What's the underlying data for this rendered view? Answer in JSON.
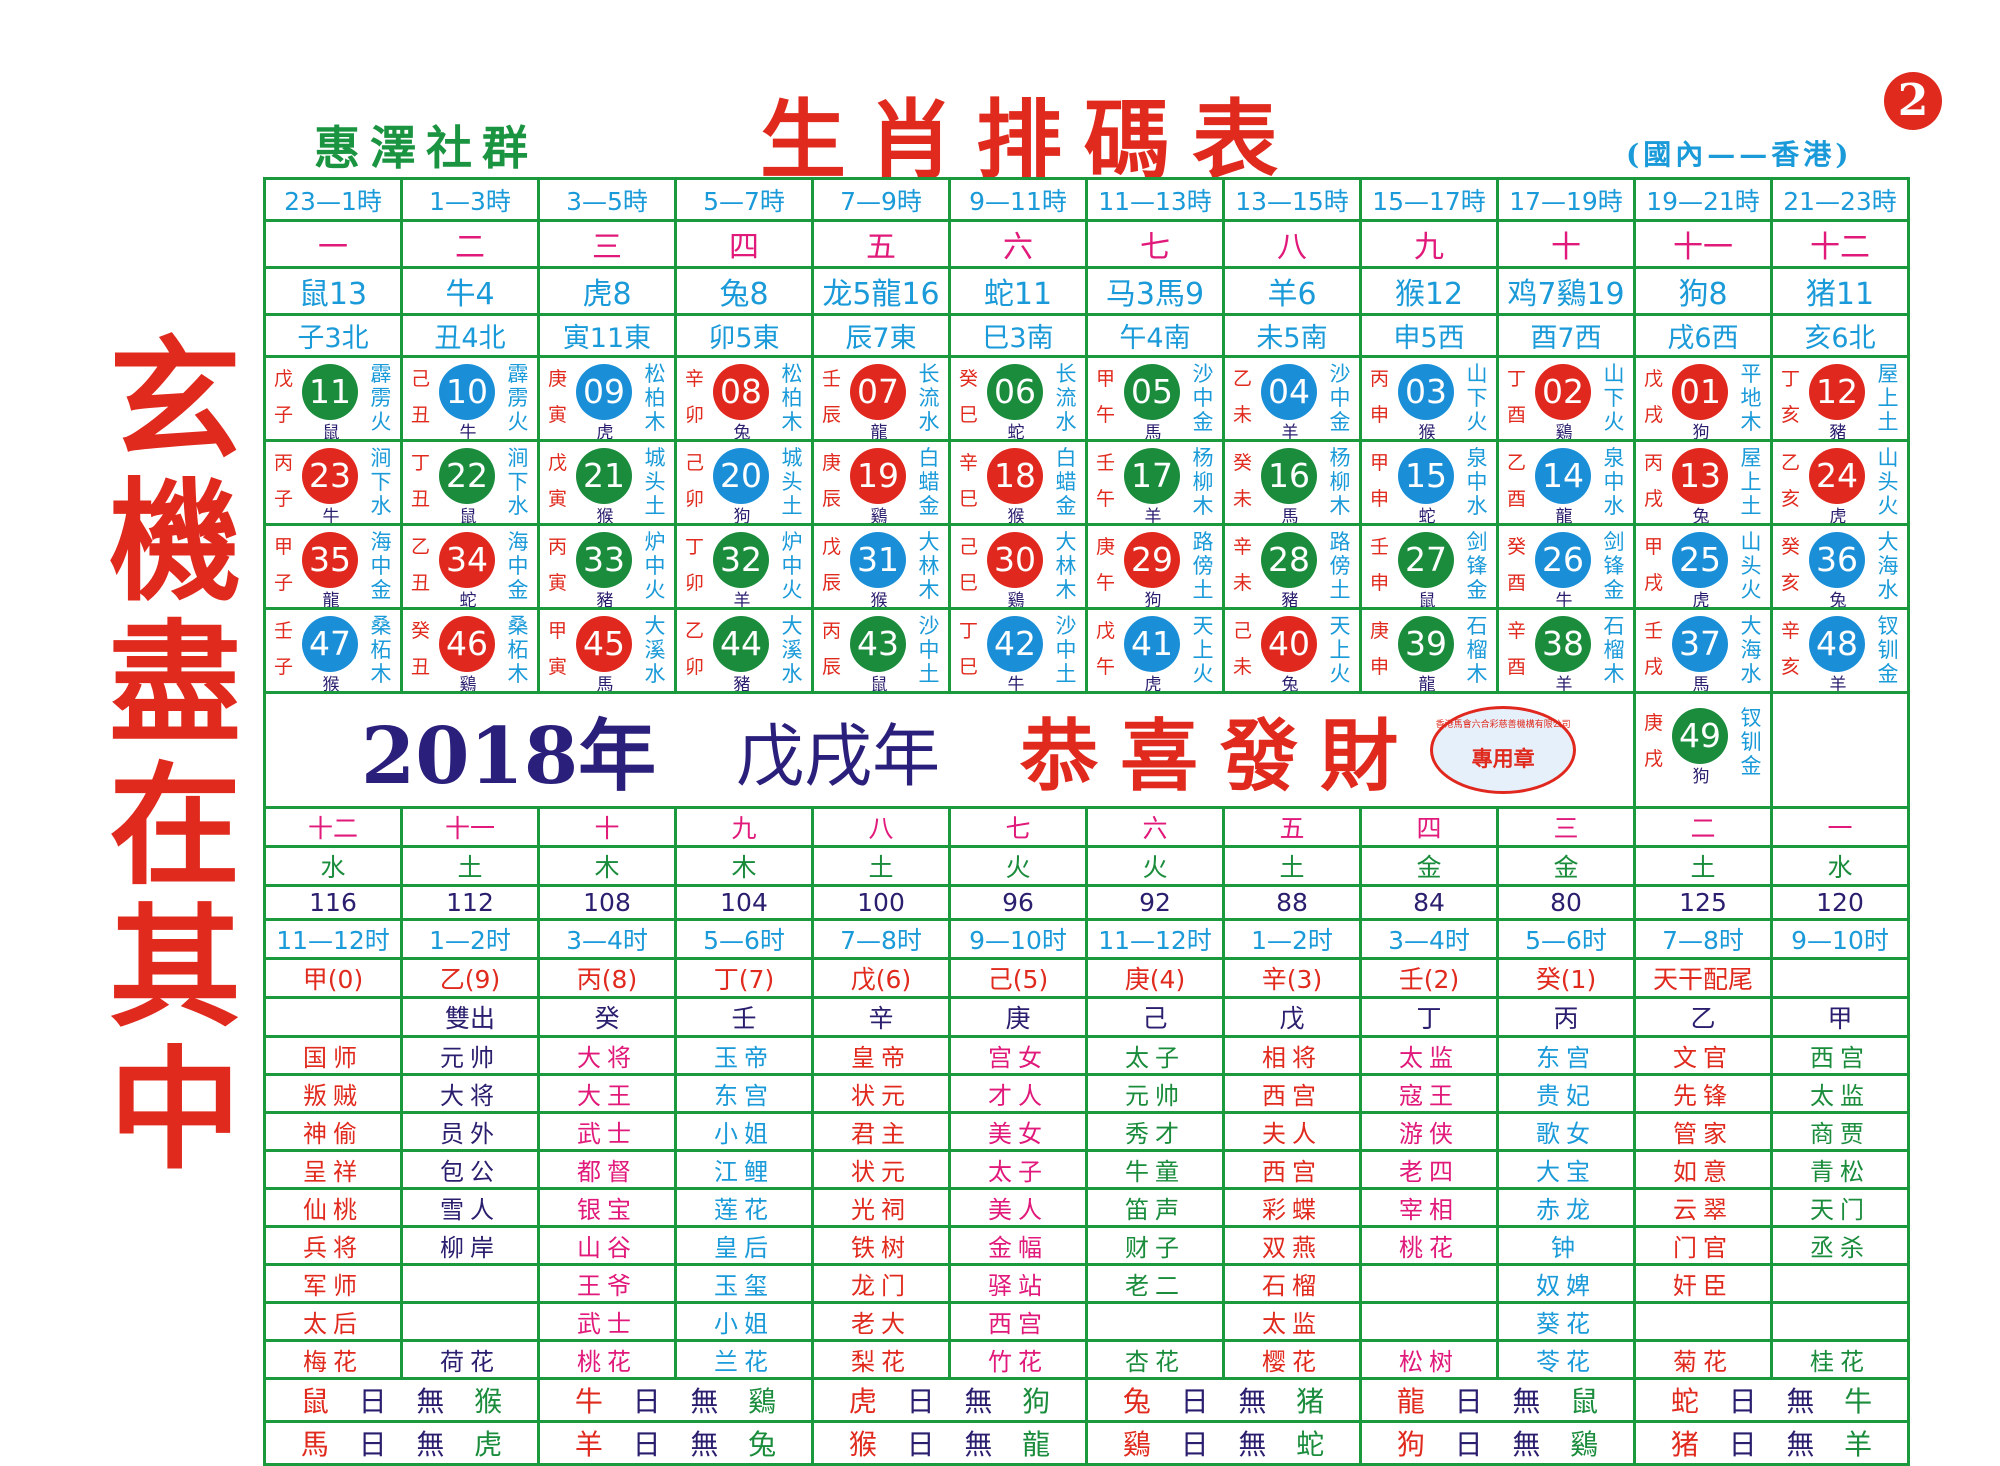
{
  "side_slogan": [
    "玄",
    "機",
    "盡",
    "在",
    "其",
    "中"
  ],
  "brand": "惠澤社群",
  "title": "生肖排碼表",
  "region": "(國內——香港)",
  "page_number": "2",
  "palette": {
    "red": "#e0281e",
    "blue": "#1a8fd8",
    "green": "#1a8c3c",
    "grid": "#1a9a3c"
  },
  "hours": [
    "23—1時",
    "1—3時",
    "3—5時",
    "5—7時",
    "7—9時",
    "9—11時",
    "11—13時",
    "13—15時",
    "15—17時",
    "17—19時",
    "19—21時",
    "21—23時"
  ],
  "ordinals": [
    "一",
    "二",
    "三",
    "四",
    "五",
    "六",
    "七",
    "八",
    "九",
    "十",
    "十一",
    "十二"
  ],
  "zodiac_counts": [
    "鼠13",
    "牛4",
    "虎8",
    "兔8",
    "龙5龍16",
    "蛇11",
    "马3馬9",
    "羊6",
    "猴12",
    "鸡7鷄19",
    "狗8",
    "猪11"
  ],
  "branch_dirs": [
    "子3北",
    "丑4北",
    "寅11東",
    "卯5東",
    "辰7東",
    "巳3南",
    "午4南",
    "未5南",
    "申5西",
    "酉7西",
    "戌6西",
    "亥6北"
  ],
  "balls": [
    [
      {
        "stem": "戊",
        "branch": "子",
        "num": "11",
        "color": "green",
        "zodiac": "鼠",
        "nayin": "霹雳火"
      },
      {
        "stem": "己",
        "branch": "丑",
        "num": "10",
        "color": "blue",
        "zodiac": "牛",
        "nayin": "霹雳火"
      },
      {
        "stem": "庚",
        "branch": "寅",
        "num": "09",
        "color": "blue",
        "zodiac": "虎",
        "nayin": "松柏木"
      },
      {
        "stem": "辛",
        "branch": "卯",
        "num": "08",
        "color": "red",
        "zodiac": "兔",
        "nayin": "松柏木"
      },
      {
        "stem": "壬",
        "branch": "辰",
        "num": "07",
        "color": "red",
        "zodiac": "龍",
        "nayin": "长流水"
      },
      {
        "stem": "癸",
        "branch": "巳",
        "num": "06",
        "color": "green",
        "zodiac": "蛇",
        "nayin": "长流水"
      },
      {
        "stem": "甲",
        "branch": "午",
        "num": "05",
        "color": "green",
        "zodiac": "馬",
        "nayin": "沙中金"
      },
      {
        "stem": "乙",
        "branch": "未",
        "num": "04",
        "color": "blue",
        "zodiac": "羊",
        "nayin": "沙中金"
      },
      {
        "stem": "丙",
        "branch": "申",
        "num": "03",
        "color": "blue",
        "zodiac": "猴",
        "nayin": "山下火"
      },
      {
        "stem": "丁",
        "branch": "酉",
        "num": "02",
        "color": "red",
        "zodiac": "鷄",
        "nayin": "山下火"
      },
      {
        "stem": "戊",
        "branch": "戌",
        "num": "01",
        "color": "red",
        "zodiac": "狗",
        "nayin": "平地木"
      },
      {
        "stem": "丁",
        "branch": "亥",
        "num": "12",
        "color": "red",
        "zodiac": "豬",
        "nayin": "屋上土"
      }
    ],
    [
      {
        "stem": "丙",
        "branch": "子",
        "num": "23",
        "color": "red",
        "zodiac": "牛",
        "nayin": "涧下水"
      },
      {
        "stem": "丁",
        "branch": "丑",
        "num": "22",
        "color": "green",
        "zodiac": "鼠",
        "nayin": "涧下水"
      },
      {
        "stem": "戊",
        "branch": "寅",
        "num": "21",
        "color": "green",
        "zodiac": "猴",
        "nayin": "城头土"
      },
      {
        "stem": "己",
        "branch": "卯",
        "num": "20",
        "color": "blue",
        "zodiac": "狗",
        "nayin": "城头土"
      },
      {
        "stem": "庚",
        "branch": "辰",
        "num": "19",
        "color": "red",
        "zodiac": "鷄",
        "nayin": "白蜡金"
      },
      {
        "stem": "辛",
        "branch": "巳",
        "num": "18",
        "color": "red",
        "zodiac": "猴",
        "nayin": "白蜡金"
      },
      {
        "stem": "壬",
        "branch": "午",
        "num": "17",
        "color": "green",
        "zodiac": "羊",
        "nayin": "杨柳木"
      },
      {
        "stem": "癸",
        "branch": "未",
        "num": "16",
        "color": "green",
        "zodiac": "馬",
        "nayin": "杨柳木"
      },
      {
        "stem": "甲",
        "branch": "申",
        "num": "15",
        "color": "blue",
        "zodiac": "蛇",
        "nayin": "泉中水"
      },
      {
        "stem": "乙",
        "branch": "酉",
        "num": "14",
        "color": "blue",
        "zodiac": "龍",
        "nayin": "泉中水"
      },
      {
        "stem": "丙",
        "branch": "戌",
        "num": "13",
        "color": "red",
        "zodiac": "兔",
        "nayin": "屋上土"
      },
      {
        "stem": "乙",
        "branch": "亥",
        "num": "24",
        "color": "red",
        "zodiac": "虎",
        "nayin": "山头火"
      }
    ],
    [
      {
        "stem": "甲",
        "branch": "子",
        "num": "35",
        "color": "red",
        "zodiac": "龍",
        "nayin": "海中金"
      },
      {
        "stem": "乙",
        "branch": "丑",
        "num": "34",
        "color": "red",
        "zodiac": "蛇",
        "nayin": "海中金"
      },
      {
        "stem": "丙",
        "branch": "寅",
        "num": "33",
        "color": "green",
        "zodiac": "豬",
        "nayin": "炉中火"
      },
      {
        "stem": "丁",
        "branch": "卯",
        "num": "32",
        "color": "green",
        "zodiac": "羊",
        "nayin": "炉中火"
      },
      {
        "stem": "戊",
        "branch": "辰",
        "num": "31",
        "color": "blue",
        "zodiac": "猴",
        "nayin": "大林木"
      },
      {
        "stem": "己",
        "branch": "巳",
        "num": "30",
        "color": "red",
        "zodiac": "鷄",
        "nayin": "大林木"
      },
      {
        "stem": "庚",
        "branch": "午",
        "num": "29",
        "color": "red",
        "zodiac": "狗",
        "nayin": "路傍土"
      },
      {
        "stem": "辛",
        "branch": "未",
        "num": "28",
        "color": "green",
        "zodiac": "豬",
        "nayin": "路傍土"
      },
      {
        "stem": "壬",
        "branch": "申",
        "num": "27",
        "color": "green",
        "zodiac": "鼠",
        "nayin": "剑锋金"
      },
      {
        "stem": "癸",
        "branch": "酉",
        "num": "26",
        "color": "blue",
        "zodiac": "牛",
        "nayin": "剑锋金"
      },
      {
        "stem": "甲",
        "branch": "戌",
        "num": "25",
        "color": "blue",
        "zodiac": "虎",
        "nayin": "山头火"
      },
      {
        "stem": "癸",
        "branch": "亥",
        "num": "36",
        "color": "blue",
        "zodiac": "兔",
        "nayin": "大海水"
      }
    ],
    [
      {
        "stem": "壬",
        "branch": "子",
        "num": "47",
        "color": "blue",
        "zodiac": "猴",
        "nayin": "桑柘木"
      },
      {
        "stem": "癸",
        "branch": "丑",
        "num": "46",
        "color": "red",
        "zodiac": "鷄",
        "nayin": "桑柘木"
      },
      {
        "stem": "甲",
        "branch": "寅",
        "num": "45",
        "color": "red",
        "zodiac": "馬",
        "nayin": "大溪水"
      },
      {
        "stem": "乙",
        "branch": "卯",
        "num": "44",
        "color": "green",
        "zodiac": "豬",
        "nayin": "大溪水"
      },
      {
        "stem": "丙",
        "branch": "辰",
        "num": "43",
        "color": "green",
        "zodiac": "鼠",
        "nayin": "沙中土"
      },
      {
        "stem": "丁",
        "branch": "巳",
        "num": "42",
        "color": "blue",
        "zodiac": "牛",
        "nayin": "沙中土"
      },
      {
        "stem": "戊",
        "branch": "午",
        "num": "41",
        "color": "blue",
        "zodiac": "虎",
        "nayin": "天上火"
      },
      {
        "stem": "己",
        "branch": "未",
        "num": "40",
        "color": "red",
        "zodiac": "兔",
        "nayin": "天上火"
      },
      {
        "stem": "庚",
        "branch": "申",
        "num": "39",
        "color": "green",
        "zodiac": "龍",
        "nayin": "石榴木"
      },
      {
        "stem": "辛",
        "branch": "酉",
        "num": "38",
        "color": "green",
        "zodiac": "羊",
        "nayin": "石榴木"
      },
      {
        "stem": "壬",
        "branch": "戌",
        "num": "37",
        "color": "blue",
        "zodiac": "馬",
        "nayin": "大海水"
      },
      {
        "stem": "辛",
        "branch": "亥",
        "num": "48",
        "color": "blue",
        "zodiac": "羊",
        "nayin": "钗钏金"
      }
    ]
  ],
  "ball_49": {
    "stem": "庚",
    "branch": "戌",
    "num": "49",
    "color": "green",
    "zodiac": "狗",
    "nayin": "钗钏金"
  },
  "banner": {
    "year": "2018年",
    "ganzhi": "戊戌年",
    "blessing": "恭喜發財",
    "stamp_ring": "香港馬會六合彩慈善機構有限公司",
    "stamp_main": "專用章"
  },
  "bottom": {
    "ordinals": [
      "十二",
      "十一",
      "十",
      "九",
      "八",
      "七",
      "六",
      "五",
      "四",
      "三",
      "二",
      "一"
    ],
    "elements": [
      "水",
      "土",
      "木",
      "木",
      "土",
      "火",
      "火",
      "土",
      "金",
      "金",
      "土",
      "水"
    ],
    "numbers": [
      "116",
      "112",
      "108",
      "104",
      "100",
      "96",
      "92",
      "88",
      "84",
      "80",
      "125",
      "120"
    ],
    "hours": [
      "11—12时",
      "1—2时",
      "3—4时",
      "5—6时",
      "7—8时",
      "9—10时",
      "11—12时",
      "1—2时",
      "3—4时",
      "5—6时",
      "7—8时",
      "9—10时"
    ],
    "stem_tails": [
      "甲(0)",
      "乙(9)",
      "丙(8)",
      "丁(7)",
      "戊(6)",
      "己(5)",
      "庚(4)",
      "辛(3)",
      "壬(2)",
      "癸(1)",
      "天干配尾",
      ""
    ],
    "stems": [
      "",
      "雙出",
      "癸",
      "壬",
      "辛",
      "庚",
      "己",
      "戊",
      "丁",
      "丙",
      "乙",
      "甲"
    ],
    "name_colors": [
      "#e02a1e",
      "#2a1f6e",
      "#e0197a",
      "#1a9ad8",
      "#e02a1e",
      "#e0197a",
      "#1a8c3c",
      "#e02a1e",
      "#e0197a",
      "#1a9ad8",
      "#e02a1e",
      "#1a8c3c"
    ],
    "names": [
      [
        "国师",
        "元帅",
        "大将",
        "玉帝",
        "皇帝",
        "宫女",
        "太子",
        "相将",
        "太监",
        "东宫",
        "文官",
        "西宫"
      ],
      [
        "叛贼",
        "大将",
        "大王",
        "东宫",
        "状元",
        "才人",
        "元帅",
        "西宫",
        "寇王",
        "贵妃",
        "先锋",
        "太监"
      ],
      [
        "神偷",
        "员外",
        "武士",
        "小姐",
        "君主",
        "美女",
        "秀才",
        "夫人",
        "游侠",
        "歌女",
        "管家",
        "商贾"
      ],
      [
        "呈祥",
        "包公",
        "都督",
        "江鲤",
        "状元",
        "太子",
        "牛童",
        "西宫",
        "老四",
        "大宝",
        "如意",
        "青松"
      ],
      [
        "仙桃",
        "雪人",
        "银宝",
        "莲花",
        "光祠",
        "美人",
        "笛声",
        "彩蝶",
        "宰相",
        "赤龙",
        "云翠",
        "天门"
      ],
      [
        "兵将",
        "柳岸",
        "山谷",
        "皇后",
        "铁树",
        "金幅",
        "财子",
        "双燕",
        "桃花",
        "钟",
        "门官",
        "丞杀"
      ],
      [
        "军师",
        "",
        "王爷",
        "玉玺",
        "龙门",
        "驿站",
        "老二",
        "石榴",
        "",
        "奴婢",
        "奸臣",
        ""
      ],
      [
        "太后",
        "",
        "武士",
        "小姐",
        "老大",
        "西宫",
        "",
        "太监",
        "",
        "葵花",
        "",
        ""
      ],
      [
        "梅花",
        "荷花",
        "桃花",
        "兰花",
        "梨花",
        "竹花",
        "杏花",
        "樱花",
        "松树",
        "苓花",
        "菊花",
        "桂花"
      ]
    ],
    "no_day_rows": [
      [
        [
          "鼠",
          "日",
          "無",
          "猴"
        ],
        [
          "牛",
          "日",
          "無",
          "鷄"
        ],
        [
          "虎",
          "日",
          "無",
          "狗"
        ],
        [
          "兔",
          "日",
          "無",
          "猪"
        ],
        [
          "龍",
          "日",
          "無",
          "鼠"
        ],
        [
          "蛇",
          "日",
          "無",
          "牛"
        ]
      ],
      [
        [
          "馬",
          "日",
          "無",
          "虎"
        ],
        [
          "羊",
          "日",
          "無",
          "兔"
        ],
        [
          "猴",
          "日",
          "無",
          "龍"
        ],
        [
          "鷄",
          "日",
          "無",
          "蛇"
        ],
        [
          "狗",
          "日",
          "無",
          "鷄"
        ],
        [
          "猪",
          "日",
          "無",
          "羊"
        ]
      ]
    ]
  }
}
